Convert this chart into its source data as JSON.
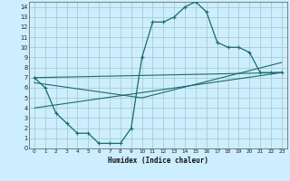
{
  "xlabel": "Humidex (Indice chaleur)",
  "background_color": "#cceeff",
  "grid_color": "#aacccc",
  "line_color": "#1a6b6b",
  "xlim": [
    -0.5,
    23.5
  ],
  "ylim": [
    0,
    14.5
  ],
  "xticks": [
    0,
    1,
    2,
    3,
    4,
    5,
    6,
    7,
    8,
    9,
    10,
    11,
    12,
    13,
    14,
    15,
    16,
    17,
    18,
    19,
    20,
    21,
    22,
    23
  ],
  "yticks": [
    0,
    1,
    2,
    3,
    4,
    5,
    6,
    7,
    8,
    9,
    10,
    11,
    12,
    13,
    14
  ],
  "main_x": [
    0,
    1,
    2,
    3,
    4,
    5,
    6,
    7,
    8,
    9,
    10,
    11,
    12,
    13,
    14,
    15,
    16,
    17,
    18,
    19,
    20,
    21,
    22,
    23
  ],
  "main_y": [
    7,
    6,
    3.5,
    2.5,
    1.5,
    1.5,
    0.5,
    0.5,
    0.5,
    2,
    9,
    12.5,
    12.5,
    13,
    14,
    14.5,
    13.5,
    10.5,
    10,
    10,
    9.5,
    7.5,
    7.5,
    7.5
  ],
  "trend1_x": [
    0,
    23
  ],
  "trend1_y": [
    7,
    7.5
  ],
  "trend2_x": [
    0,
    10,
    23
  ],
  "trend2_y": [
    6.5,
    5,
    8.5
  ],
  "trend3_x": [
    0,
    23
  ],
  "trend3_y": [
    4,
    7.5
  ]
}
